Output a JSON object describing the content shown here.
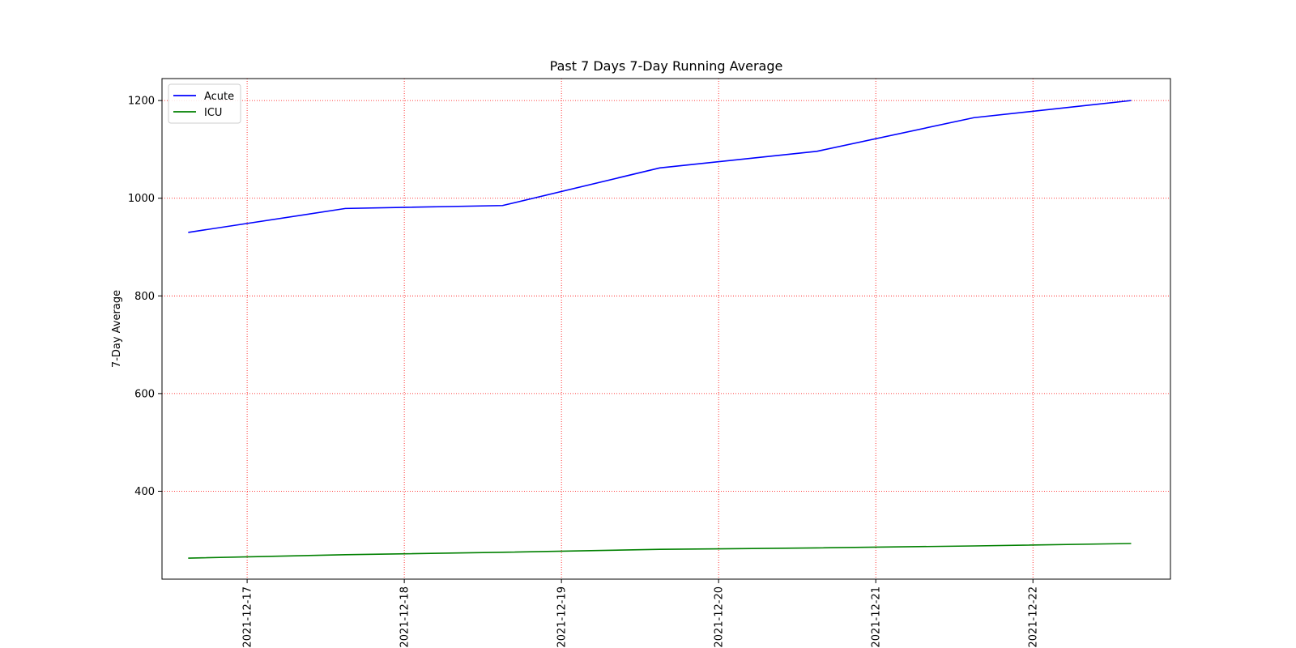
{
  "chart_data": {
    "type": "line",
    "title": "Past 7 Days 7-Day Running Average",
    "xlabel": "",
    "ylabel": "7-Day Average",
    "x_ticks": [
      "2021-12-17",
      "2021-12-18",
      "2021-12-19",
      "2021-12-20",
      "2021-12-21",
      "2021-12-22"
    ],
    "y_ticks": [
      400,
      600,
      800,
      1000,
      1200
    ],
    "xlim": [
      "2021-12-16 11:00",
      "2021-12-22 21:00"
    ],
    "ylim": [
      220,
      1245
    ],
    "x": [
      "2021-12-16 15:00",
      "2021-12-17 15:00",
      "2021-12-18 15:00",
      "2021-12-19 15:00",
      "2021-12-20 15:00",
      "2021-12-21 15:00",
      "2021-12-22 15:00"
    ],
    "series": [
      {
        "name": "Acute",
        "color": "#0000ff",
        "values": [
          930,
          979,
          985,
          1062,
          1096,
          1165,
          1200
        ]
      },
      {
        "name": "ICU",
        "color": "#008000",
        "values": [
          263,
          270,
          275,
          281,
          284,
          288,
          293
        ]
      }
    ],
    "grid": true,
    "grid_color": "#ff0000",
    "legend_position": "upper-left"
  }
}
